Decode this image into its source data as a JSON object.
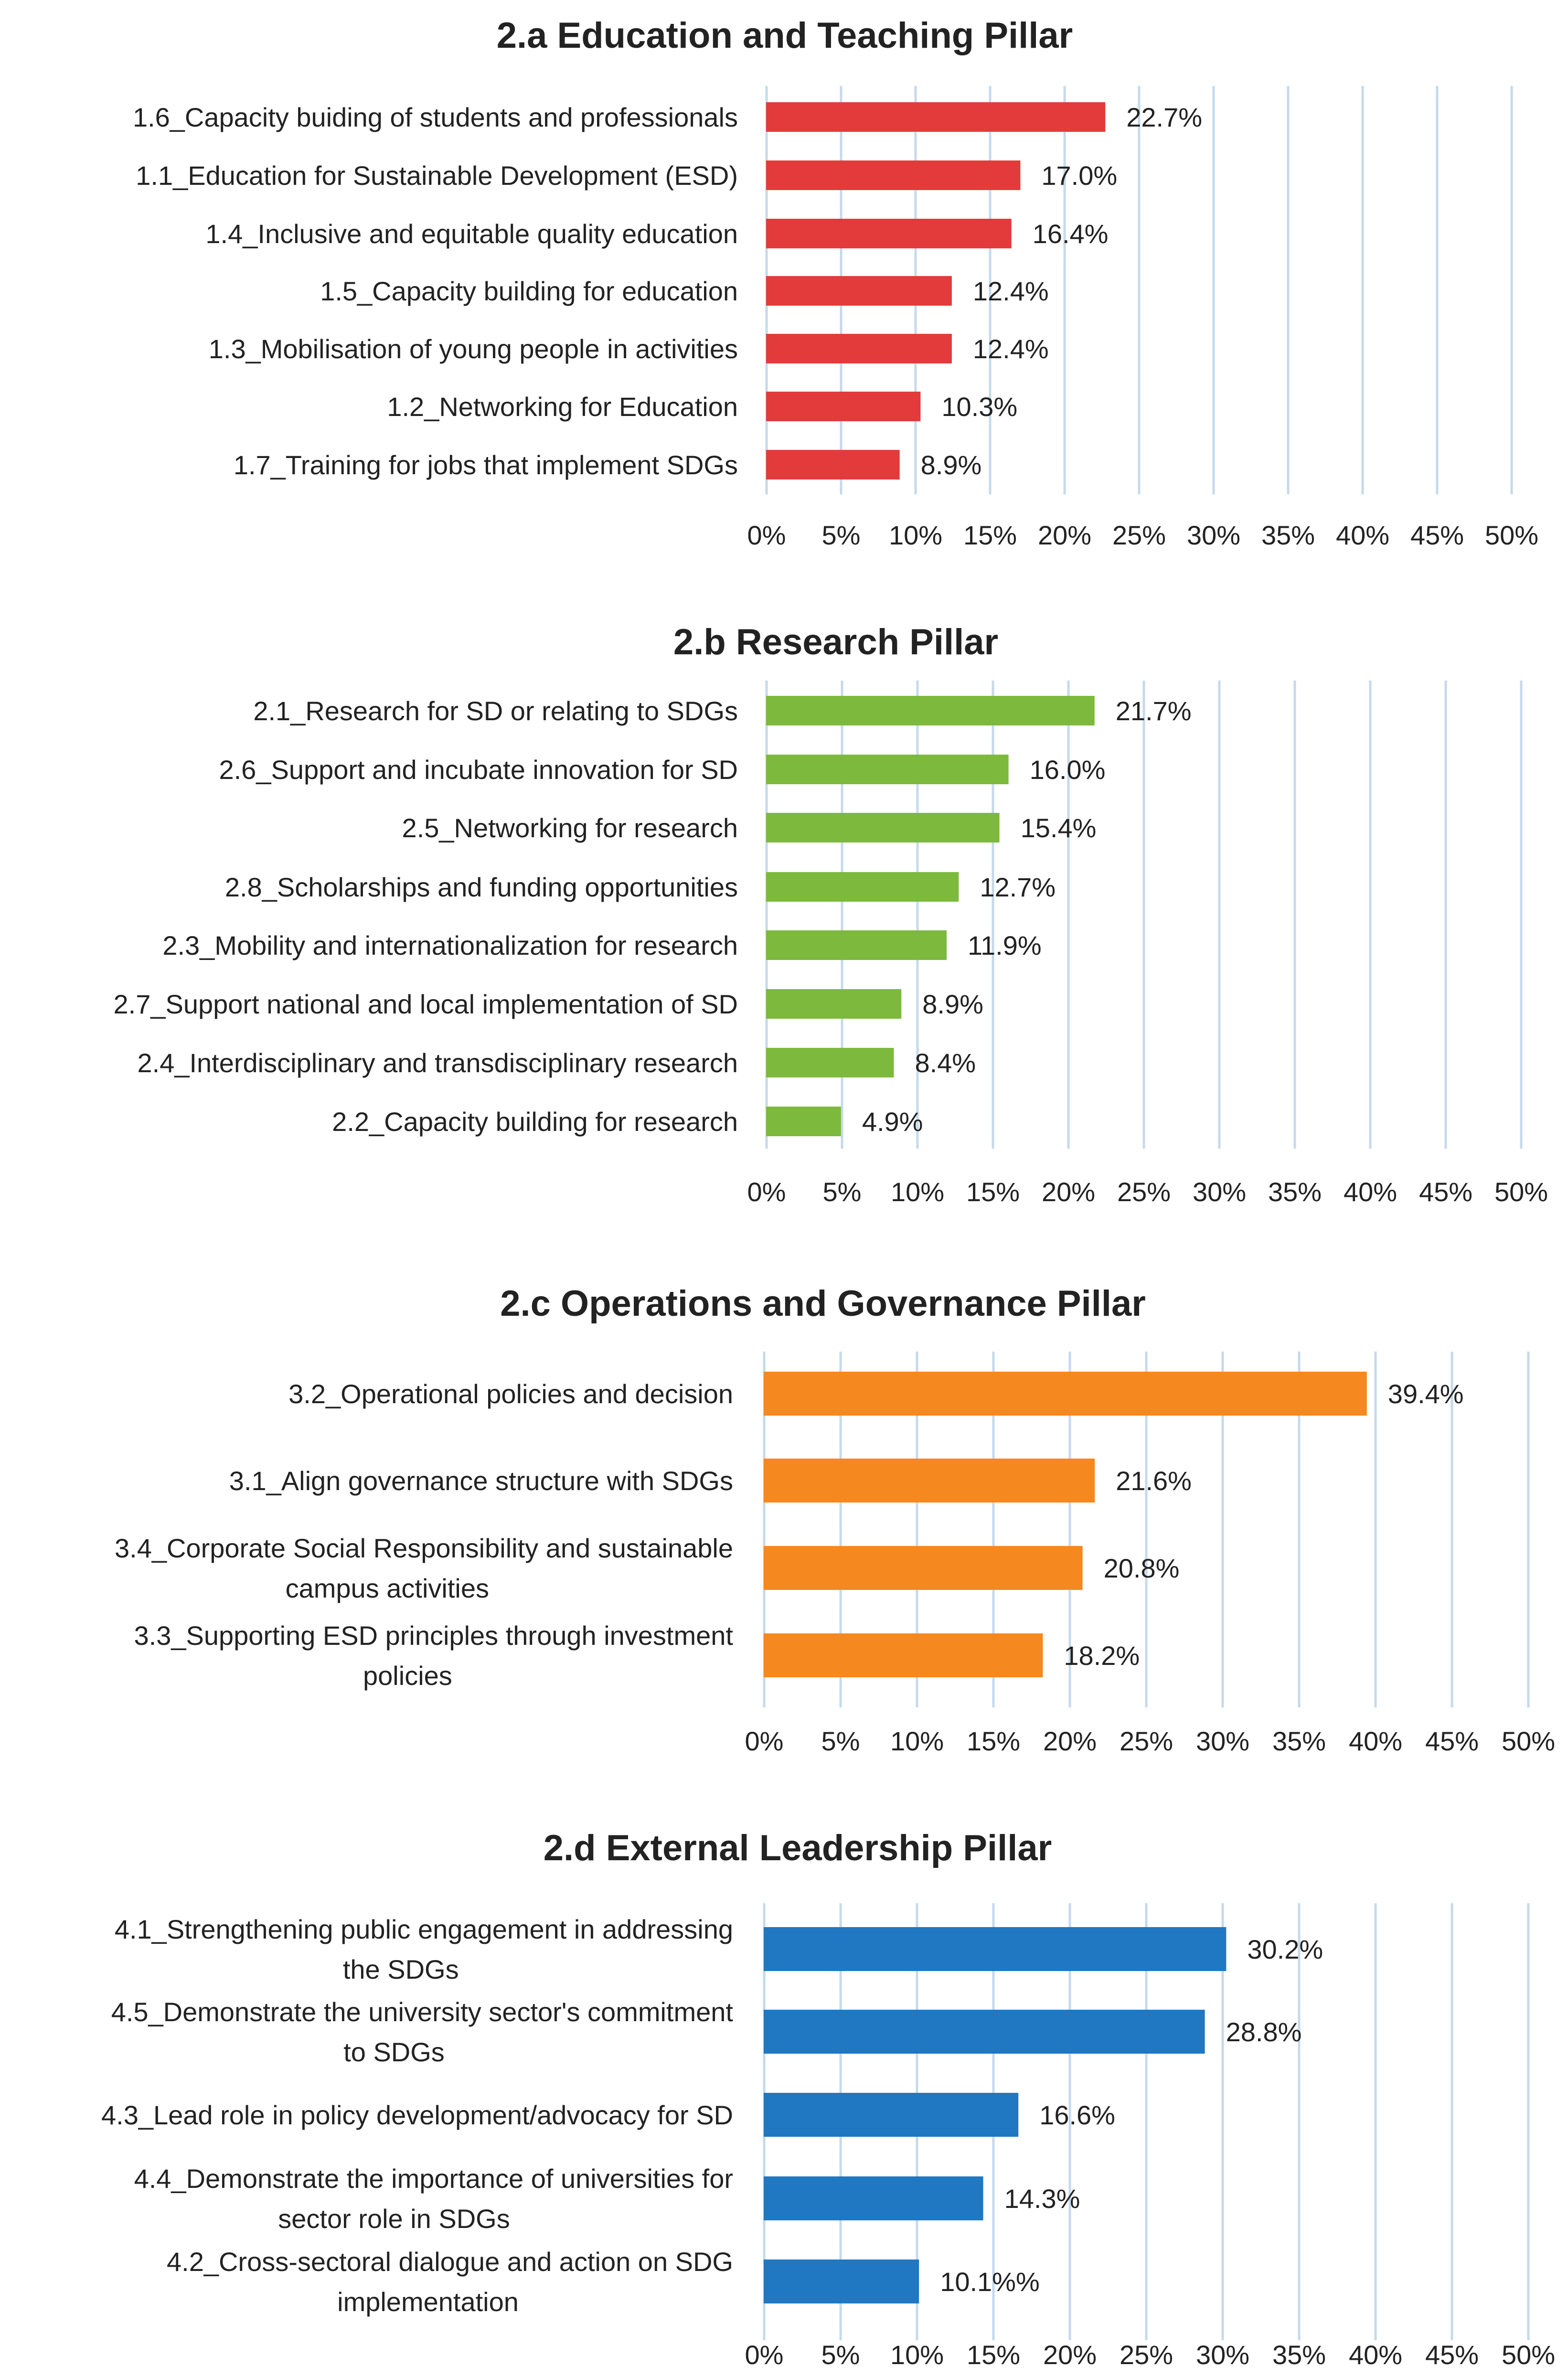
{
  "chart_data": [
    {
      "type": "bar",
      "orientation": "horizontal",
      "title": "2.a Education and Teaching Pillar",
      "color": "#e33b3b",
      "categories": [
        [
          "1.6_Capacity buiding of students and professionals"
        ],
        [
          "1.1_Education for Sustainable Development (ESD)"
        ],
        [
          "1.4_Inclusive and equitable quality education"
        ],
        [
          "1.5_Capacity building for education"
        ],
        [
          "1.3_Mobilisation of young people in activities"
        ],
        [
          "1.2_Networking for Education"
        ],
        [
          "1.7_Training for jobs that implement SDGs"
        ]
      ],
      "values": [
        22.7,
        17.0,
        16.4,
        12.4,
        12.4,
        10.3,
        8.9
      ],
      "value_labels": [
        "22.7%",
        "17.0%",
        "16.4%",
        "12.4%",
        "12.4%",
        "10.3%",
        "8.9%"
      ],
      "xlim": [
        0,
        50
      ],
      "xticks": [
        "0%",
        "5%",
        "10%",
        "15%",
        "20%",
        "25%",
        "30%",
        "35%",
        "40%",
        "45%",
        "50%"
      ],
      "grid": true
    },
    {
      "type": "bar",
      "orientation": "horizontal",
      "title": "2.b Research Pillar",
      "color": "#7cb93d",
      "categories": [
        [
          "2.1_Research for SD or relating to SDGs"
        ],
        [
          "2.6_Support and incubate innovation for SD"
        ],
        [
          "2.5_Networking for research"
        ],
        [
          "2.8_Scholarships and funding opportunities"
        ],
        [
          "2.3_Mobility and internationalization for research"
        ],
        [
          "2.7_Support national and local implementation of SD"
        ],
        [
          "2.4_Interdisciplinary and transdisciplinary research"
        ],
        [
          "2.2_Capacity building for research"
        ]
      ],
      "values": [
        21.7,
        16.0,
        15.4,
        12.7,
        11.9,
        8.9,
        8.4,
        4.9
      ],
      "value_labels": [
        "21.7%",
        "16.0%",
        "15.4%",
        "12.7%",
        "11.9%",
        "8.9%",
        "8.4%",
        "4.9%"
      ],
      "xlim": [
        0,
        50
      ],
      "xticks": [
        "0%",
        "5%",
        "10%",
        "15%",
        "20%",
        "25%",
        "30%",
        "35%",
        "40%",
        "45%",
        "50%"
      ],
      "grid": true
    },
    {
      "type": "bar",
      "orientation": "horizontal",
      "title": "2.c Operations and Governance Pillar",
      "color": "#f5881f",
      "categories": [
        [
          "3.2_Operational policies and decision"
        ],
        [
          "3.1_Align governance structure with SDGs"
        ],
        [
          "3.4_Corporate Social Responsibility and sustainable",
          "campus activities"
        ],
        [
          "3.3_Supporting ESD principles through investment",
          "policies"
        ]
      ],
      "values": [
        39.4,
        21.6,
        20.8,
        18.2
      ],
      "value_labels": [
        "39.4%",
        "21.6%",
        "20.8%",
        "18.2%"
      ],
      "xlim": [
        0,
        50
      ],
      "xticks": [
        "0%",
        "5%",
        "10%",
        "15%",
        "20%",
        "25%",
        "30%",
        "35%",
        "40%",
        "45%",
        "50%"
      ],
      "grid": true
    },
    {
      "type": "bar",
      "orientation": "horizontal",
      "title": "2.d External Leadership Pillar",
      "color": "#1f78c1",
      "categories": [
        [
          "4.1_Strengthening public engagement in addressing",
          "the SDGs"
        ],
        [
          "4.5_Demonstrate the university sector's commitment",
          "to SDGs"
        ],
        [
          "4.3_Lead role in policy development/advocacy for SD"
        ],
        [
          "4.4_Demonstrate the importance of universities for",
          "sector role in SDGs"
        ],
        [
          "4.2_Cross-sectoral dialogue and action on SDG",
          "implementation"
        ]
      ],
      "values": [
        30.2,
        28.8,
        16.6,
        14.3,
        10.1
      ],
      "value_labels": [
        "30.2%",
        "28.8%",
        "16.6%",
        "14.3%",
        "10.1%%"
      ],
      "xlim": [
        0,
        50
      ],
      "xticks": [
        "0%",
        "5%",
        "10%",
        "15%",
        "20%",
        "25%",
        "30%",
        "35%",
        "40%",
        "45%",
        "50%"
      ],
      "grid": true
    }
  ]
}
